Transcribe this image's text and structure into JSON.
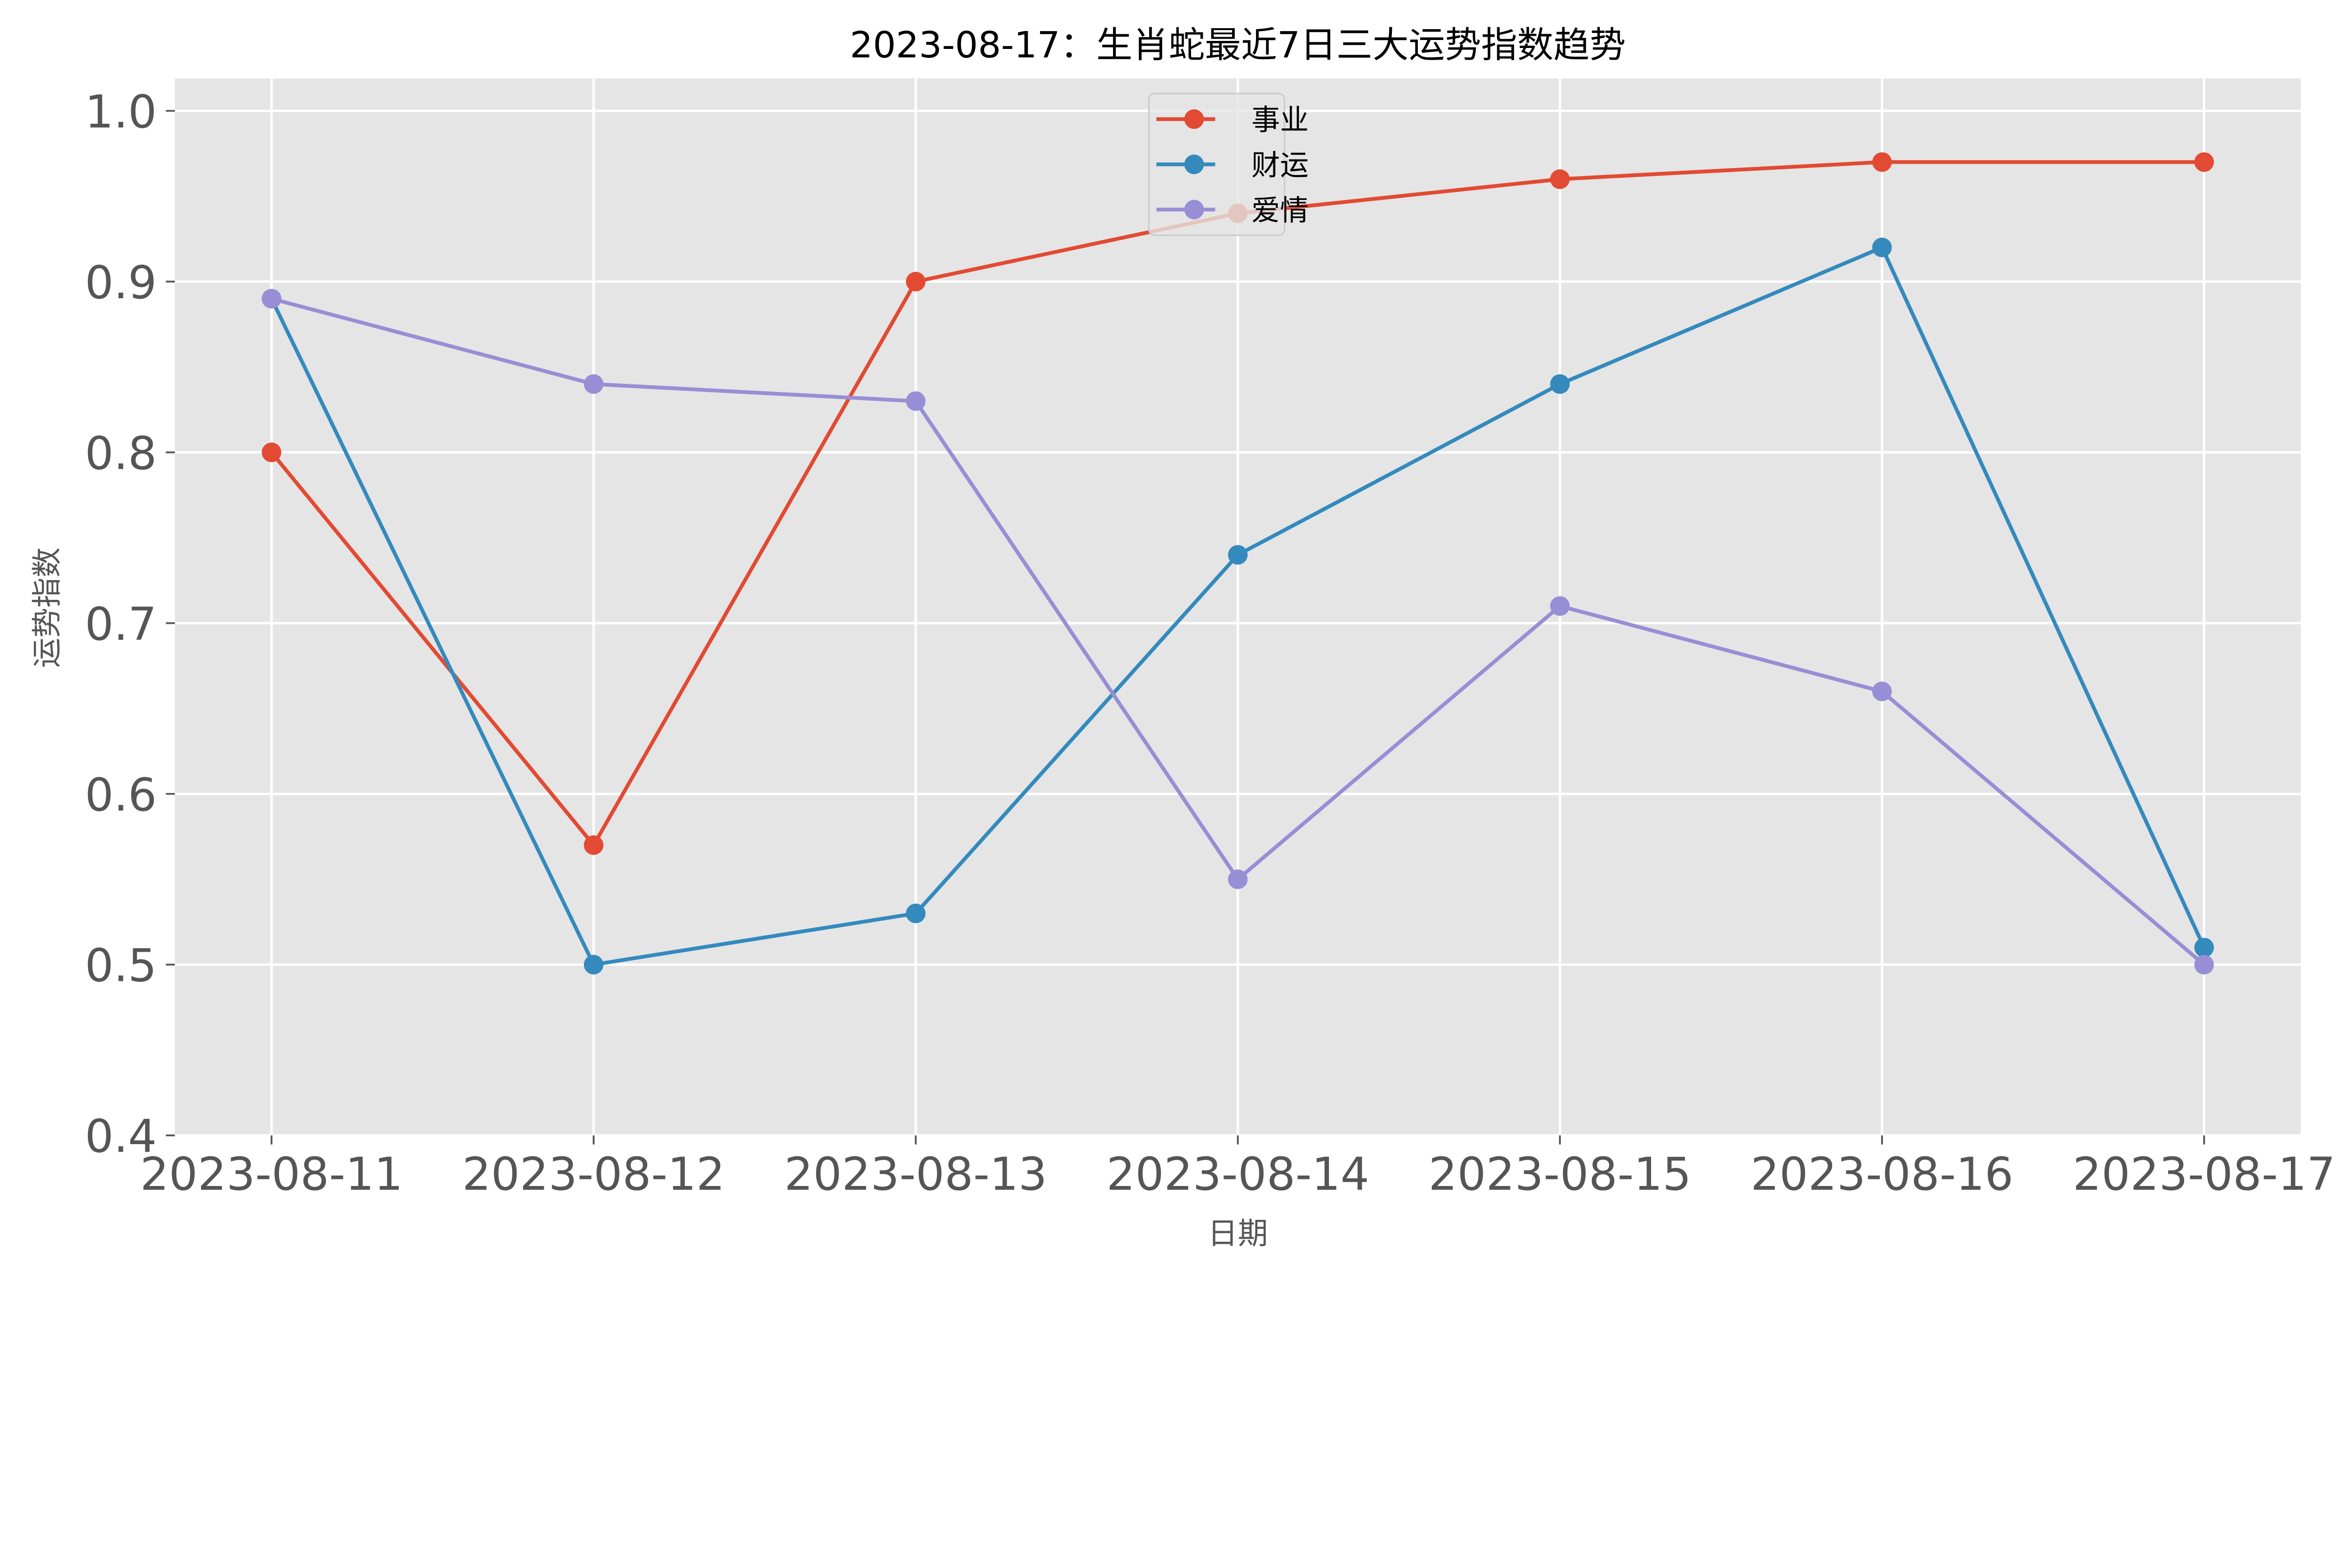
{
  "chart_data": {
    "type": "line",
    "title": "2023-08-17：生肖蛇最近7日三大运势指数趋势",
    "xlabel": "日期",
    "ylabel": "运势指数",
    "categories": [
      "2023-08-11",
      "2023-08-12",
      "2023-08-13",
      "2023-08-14",
      "2023-08-15",
      "2023-08-16",
      "2023-08-17"
    ],
    "yticks": [
      "0.4",
      "0.5",
      "0.6",
      "0.7",
      "0.8",
      "0.9",
      "1.0"
    ],
    "ylim": [
      0.4,
      1.019
    ],
    "grid": true,
    "legend": "top-center",
    "background": "#E5E5E5",
    "series": [
      {
        "name": "事业",
        "color": "#E24A33",
        "values": [
          0.8,
          0.57,
          0.9,
          0.94,
          0.96,
          0.97,
          0.97
        ]
      },
      {
        "name": "财运",
        "color": "#348ABD",
        "values": [
          0.89,
          0.5,
          0.53,
          0.74,
          0.84,
          0.92,
          0.51
        ]
      },
      {
        "name": "爱情",
        "color": "#988ED5",
        "values": [
          0.89,
          0.84,
          0.83,
          0.55,
          0.71,
          0.66,
          0.5
        ]
      }
    ]
  }
}
